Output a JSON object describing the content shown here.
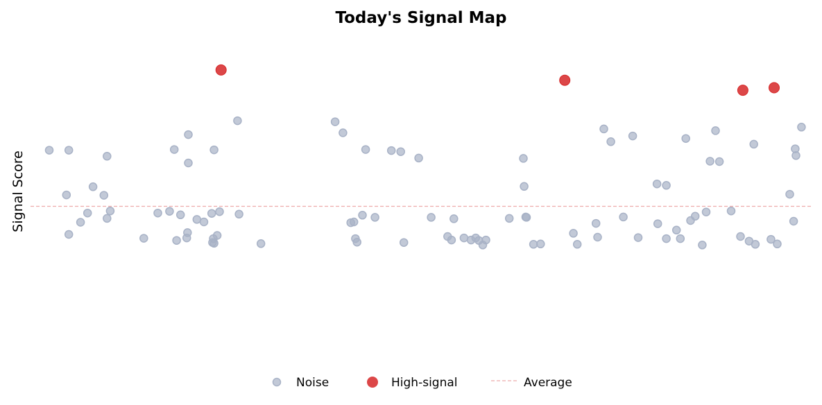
{
  "chart_data": {
    "type": "scatter",
    "title": "Today's Signal Map",
    "xlabel": "",
    "ylabel": "Signal Score",
    "xlim": [
      0,
      100
    ],
    "ylim": [
      0,
      100
    ],
    "grid": false,
    "axes_visible": false,
    "legend_position": "bottom-center",
    "average": 45.8,
    "average_color": "#e06666",
    "series": [
      {
        "name": "Noise",
        "color": "#a8b2c6",
        "points": [
          [
            2.4,
            61.6
          ],
          [
            4.6,
            49.0
          ],
          [
            4.9,
            37.9
          ],
          [
            4.9,
            61.6
          ],
          [
            6.4,
            41.3
          ],
          [
            7.3,
            43.9
          ],
          [
            8.0,
            51.3
          ],
          [
            9.4,
            48.9
          ],
          [
            9.8,
            42.4
          ],
          [
            9.8,
            59.9
          ],
          [
            10.2,
            44.5
          ],
          [
            14.5,
            36.8
          ],
          [
            16.3,
            43.9
          ],
          [
            17.8,
            44.4
          ],
          [
            18.4,
            61.8
          ],
          [
            18.7,
            36.2
          ],
          [
            19.2,
            43.4
          ],
          [
            20.0,
            36.9
          ],
          [
            20.1,
            38.4
          ],
          [
            20.2,
            66.0
          ],
          [
            20.2,
            58.0
          ],
          [
            21.3,
            42.1
          ],
          [
            22.2,
            41.4
          ],
          [
            23.2,
            43.8
          ],
          [
            23.3,
            35.6
          ],
          [
            23.4,
            36.7
          ],
          [
            23.5,
            61.7
          ],
          [
            23.5,
            35.4
          ],
          [
            23.9,
            37.6
          ],
          [
            24.2,
            44.3
          ],
          [
            26.5,
            69.9
          ],
          [
            26.7,
            43.6
          ],
          [
            29.5,
            35.3
          ],
          [
            39.0,
            69.6
          ],
          [
            40.0,
            66.5
          ],
          [
            41.0,
            41.2
          ],
          [
            41.4,
            41.4
          ],
          [
            41.6,
            36.7
          ],
          [
            41.8,
            35.7
          ],
          [
            42.5,
            43.3
          ],
          [
            42.9,
            61.8
          ],
          [
            44.1,
            42.7
          ],
          [
            46.2,
            61.5
          ],
          [
            47.4,
            61.2
          ],
          [
            47.8,
            35.6
          ],
          [
            49.7,
            59.4
          ],
          [
            51.3,
            42.7
          ],
          [
            53.4,
            37.3
          ],
          [
            53.9,
            36.3
          ],
          [
            54.2,
            42.3
          ],
          [
            55.5,
            36.9
          ],
          [
            56.4,
            36.3
          ],
          [
            57.0,
            36.9
          ],
          [
            57.4,
            36.2
          ],
          [
            57.9,
            34.9
          ],
          [
            58.3,
            36.3
          ],
          [
            61.3,
            42.4
          ],
          [
            63.1,
            59.3
          ],
          [
            63.2,
            51.4
          ],
          [
            63.4,
            42.8
          ],
          [
            63.5,
            42.7
          ],
          [
            64.4,
            35.1
          ],
          [
            65.3,
            35.2
          ],
          [
            69.5,
            38.2
          ],
          [
            70.0,
            35.1
          ],
          [
            72.4,
            41.0
          ],
          [
            72.6,
            37.1
          ],
          [
            73.4,
            67.6
          ],
          [
            74.3,
            64.0
          ],
          [
            75.9,
            42.8
          ],
          [
            77.1,
            65.6
          ],
          [
            77.8,
            37.0
          ],
          [
            80.2,
            52.1
          ],
          [
            80.3,
            40.9
          ],
          [
            81.4,
            51.7
          ],
          [
            81.4,
            36.7
          ],
          [
            82.7,
            39.1
          ],
          [
            83.2,
            36.7
          ],
          [
            83.9,
            64.9
          ],
          [
            84.5,
            41.8
          ],
          [
            85.1,
            43.0
          ],
          [
            86.0,
            34.9
          ],
          [
            86.5,
            44.2
          ],
          [
            87.0,
            58.5
          ],
          [
            87.7,
            67.1
          ],
          [
            88.2,
            58.4
          ],
          [
            89.7,
            44.5
          ],
          [
            90.9,
            37.3
          ],
          [
            92.0,
            36.0
          ],
          [
            92.6,
            63.3
          ],
          [
            92.8,
            35.1
          ],
          [
            94.8,
            36.5
          ],
          [
            95.6,
            35.2
          ],
          [
            97.2,
            49.2
          ],
          [
            97.7,
            41.6
          ],
          [
            97.9,
            62.0
          ],
          [
            98.0,
            60.1
          ],
          [
            98.7,
            68.1
          ]
        ]
      },
      {
        "name": "High-signal",
        "color": "#d62728",
        "points": [
          [
            24.4,
            84.2
          ],
          [
            68.4,
            81.3
          ],
          [
            91.2,
            78.5
          ],
          [
            95.2,
            79.2
          ]
        ]
      }
    ],
    "legend": [
      "Noise",
      "High-signal",
      "Average"
    ]
  }
}
